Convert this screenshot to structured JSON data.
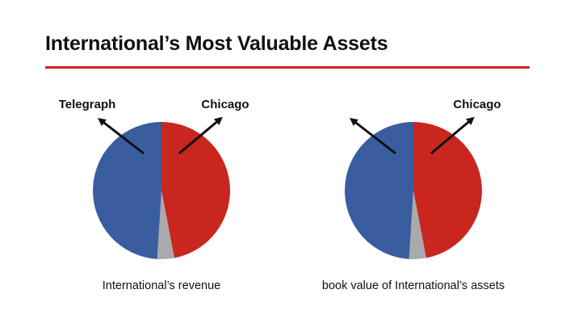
{
  "title": "International’s Most Valuable Assets",
  "colors": {
    "accent_rule": "#c62828",
    "telegraph": "#3a5da0",
    "chicago": "#c8261f",
    "other": "#aaaaaa",
    "arrow": "#111111"
  },
  "chart_data": [
    {
      "type": "pie",
      "title": "International’s revenue",
      "slices": [
        {
          "label": "Chicago",
          "value": 47,
          "color": "#c8261f",
          "label_shown": true
        },
        {
          "label": "",
          "value": 4,
          "color": "#aaaaaa",
          "label_shown": false
        },
        {
          "label": "Telegraph",
          "value": 49,
          "color": "#3a5da0",
          "label_shown": true
        }
      ]
    },
    {
      "type": "pie",
      "title": "book value of International’s assets",
      "slices": [
        {
          "label": "Chicago",
          "value": 47,
          "color": "#c8261f",
          "label_shown": true
        },
        {
          "label": "",
          "value": 4,
          "color": "#aaaaaa",
          "label_shown": false
        },
        {
          "label": "",
          "value": 49,
          "color": "#3a5da0",
          "label_shown": false
        }
      ]
    }
  ]
}
